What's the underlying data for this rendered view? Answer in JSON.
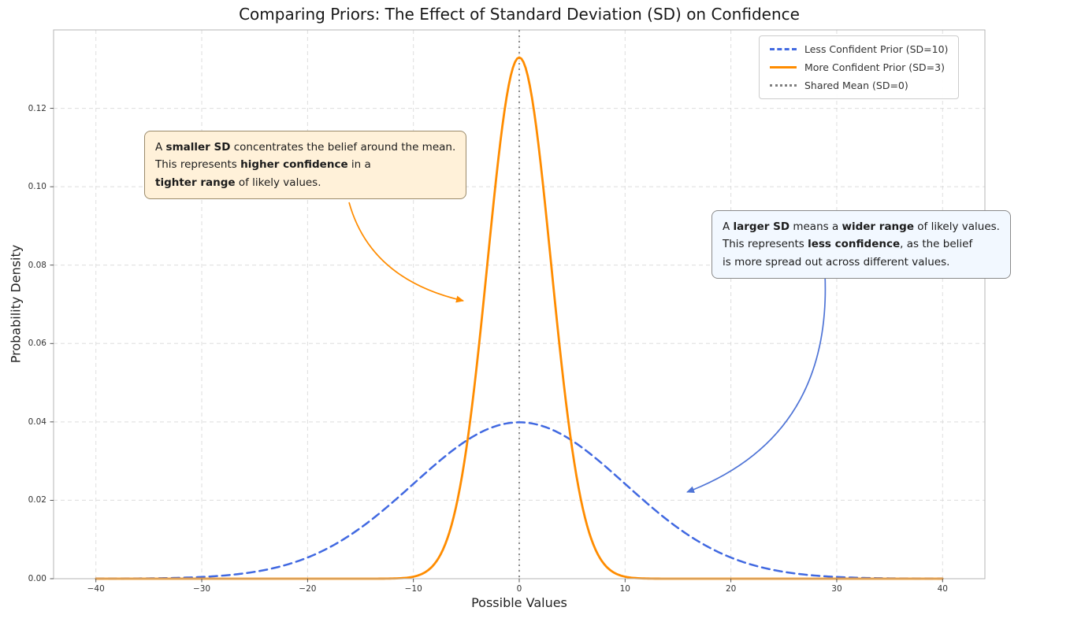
{
  "title": "Comparing Priors: The Effect of Standard Deviation (SD) on Confidence",
  "axes": {
    "xlabel": "Possible Values",
    "ylabel": "Probability Density",
    "xlim": [
      -44,
      44
    ],
    "ylim": [
      0,
      0.14
    ],
    "x_ticks": [
      -40,
      -30,
      -20,
      -10,
      0,
      10,
      20,
      30,
      40
    ],
    "y_ticks": [
      0,
      0.02,
      0.04,
      0.06,
      0.08,
      0.1,
      0.12
    ],
    "grid_color": "#d4d4d4",
    "spine_color": "#b5b5b5"
  },
  "legend": [
    {
      "label": "Less Confident Prior (SD=10)",
      "style": "dashed",
      "color": "#4169e1"
    },
    {
      "label": "More Confident Prior (SD=3)",
      "style": "solid",
      "color": "#ff8c00"
    },
    {
      "label": "Shared Mean (SD=0)",
      "style": "dotted",
      "color": "#7f7f7f"
    }
  ],
  "chart_data": {
    "type": "line",
    "x_range": [
      -40,
      40
    ],
    "series": [
      {
        "name": "Less Confident Prior (SD=10)",
        "distribution": "normal",
        "mean": 0,
        "sd": 10,
        "peak_density": 0.0399,
        "color": "#4169e1",
        "line_style": "dashed",
        "line_width": 2.5
      },
      {
        "name": "More Confident Prior (SD=3)",
        "distribution": "normal",
        "mean": 0,
        "sd": 3,
        "peak_density": 0.133,
        "color": "#ff8c00",
        "line_style": "solid",
        "line_width": 2.8
      }
    ],
    "vline": {
      "x": 0,
      "label": "Shared Mean (SD=0)",
      "color": "#7f7f7f",
      "line_style": "dotted"
    },
    "grid": true,
    "legend_position": "upper right"
  },
  "annotations": {
    "smaller_sd": {
      "bg": "#fff1d9",
      "border": "#9a8a6a",
      "arrow_color": "#ff8c00",
      "lines": [
        [
          {
            "text": "A ",
            "bold": false
          },
          {
            "text": "smaller SD",
            "bold": true
          },
          {
            "text": " concentrates the belief around the mean.",
            "bold": false
          }
        ],
        [
          {
            "text": "This represents ",
            "bold": false
          },
          {
            "text": "higher confidence",
            "bold": true
          },
          {
            "text": " in a",
            "bold": false
          }
        ],
        [
          {
            "text": "tighter range",
            "bold": true
          },
          {
            "text": " of likely values.",
            "bold": false
          }
        ]
      ]
    },
    "larger_sd": {
      "bg": "#f2f8ff",
      "border": "#8a8a8a",
      "arrow_color": "#4f74d6",
      "lines": [
        [
          {
            "text": "A ",
            "bold": false
          },
          {
            "text": "larger SD",
            "bold": true
          },
          {
            "text": " means a ",
            "bold": false
          },
          {
            "text": "wider range",
            "bold": true
          },
          {
            "text": " of likely values.",
            "bold": false
          }
        ],
        [
          {
            "text": "This represents ",
            "bold": false
          },
          {
            "text": "less confidence",
            "bold": true
          },
          {
            "text": ", as the belief",
            "bold": false
          }
        ],
        [
          {
            "text": "is more spread out across different values.",
            "bold": false
          }
        ]
      ]
    }
  }
}
